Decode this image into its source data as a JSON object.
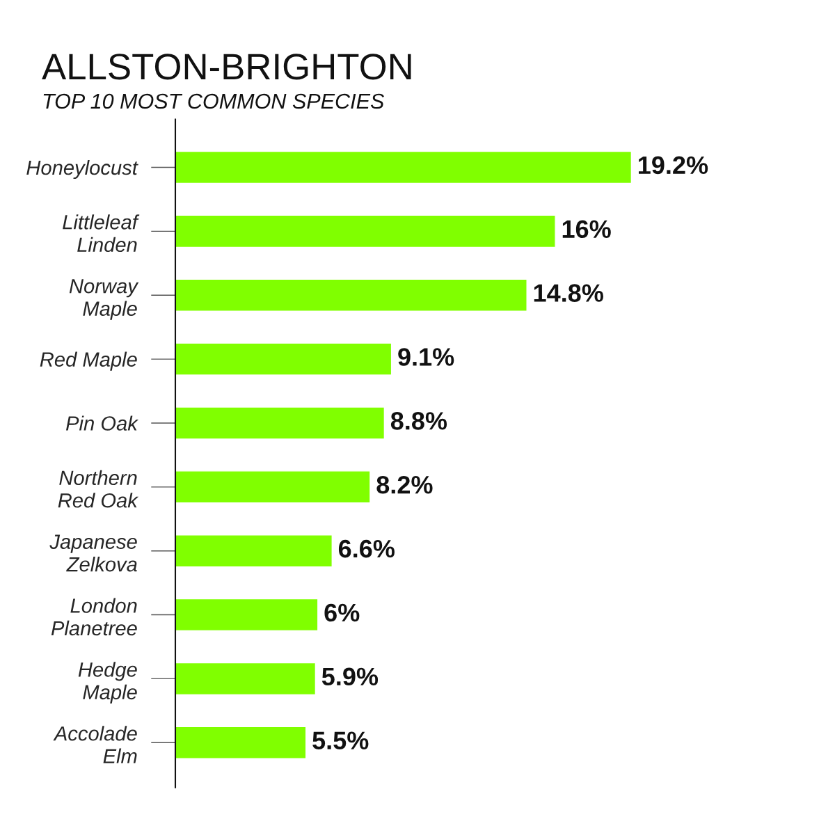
{
  "chart_data": {
    "type": "bar",
    "orientation": "horizontal",
    "title": "ALLSTON-BRIGHTON",
    "subtitle": "TOP 10 MOST COMMON SPECIES",
    "categories": [
      "Honeylocust",
      "Littleleaf\nLinden",
      "Norway\nMaple",
      "Red Maple",
      "Pin Oak",
      "Northern\nRed Oak",
      "Japanese\nZelkova",
      "London\nPlanetree",
      "Hedge\nMaple",
      "Accolade\nElm"
    ],
    "values": [
      19.2,
      16,
      14.8,
      9.1,
      8.8,
      8.2,
      6.6,
      6,
      5.9,
      5.5
    ],
    "value_labels": [
      "19.2%",
      "16%",
      "14.8%",
      "9.1%",
      "8.8%",
      "8.2%",
      "6.6%",
      "6%",
      "5.9%",
      "5.5%"
    ],
    "color": "#80ff00",
    "grid": false,
    "legend": false,
    "tick_labels": "y"
  }
}
